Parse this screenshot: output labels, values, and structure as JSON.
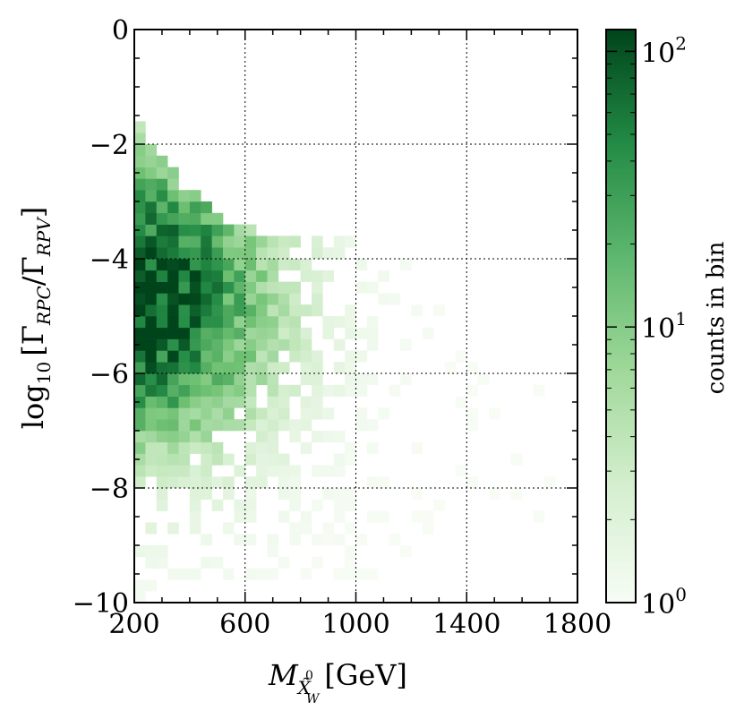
{
  "chart_data": {
    "type": "heatmap",
    "title": "",
    "xlabel": {
      "main": "M",
      "sub": "X̃",
      "sub_sup": "0",
      "sub_sub": "W",
      "unit": "[GeV]"
    },
    "ylabel": {
      "prefix": "log",
      "prefix_sub": "10",
      "open": "[Γ",
      "num_sub": "RPC",
      "slash": "/Γ",
      "den_sub": "RPV",
      "close": "]"
    },
    "xlim": [
      200,
      1800
    ],
    "ylim": [
      -10,
      0
    ],
    "xticks": [
      200,
      600,
      1000,
      1400,
      1800
    ],
    "xtick_labels": [
      "200",
      "600",
      "1000",
      "1400",
      "1800"
    ],
    "yticks": [
      -10,
      -8,
      -6,
      -4,
      -2,
      0
    ],
    "ytick_labels": [
      "−10",
      "−8",
      "−6",
      "−4",
      "−2",
      "0"
    ],
    "grid": true,
    "bin_width_x": 40,
    "bin_width_y": 0.2,
    "colormap": {
      "low": "#f7fcf5",
      "mid": "#74c476",
      "high": "#00441b"
    },
    "colorbar": {
      "label": "counts in bin",
      "scale": "log",
      "range": [
        1,
        120
      ],
      "ticks": [
        {
          "value": 1,
          "base": "10",
          "exp": "0"
        },
        {
          "value": 10,
          "base": "10",
          "exp": "1"
        },
        {
          "value": 100,
          "base": "10",
          "exp": "2"
        }
      ]
    },
    "density_profile": [
      {
        "x": 200,
        "y": [
          -10.0,
          -1.8
        ]
      },
      {
        "x": 320,
        "y": [
          -9.8,
          -2.6
        ]
      },
      {
        "x": 440,
        "y": [
          -9.6,
          -3.2
        ]
      },
      {
        "x": 600,
        "y": [
          -9.8,
          -3.6
        ]
      },
      {
        "x": 800,
        "y": [
          -9.6,
          -3.8
        ]
      },
      {
        "x": 1000,
        "y": [
          -9.6,
          -3.8
        ]
      },
      {
        "x": 1200,
        "y": [
          -9.6,
          -4.2
        ]
      },
      {
        "x": 1400,
        "y": [
          -8.0,
          -6.0
        ]
      },
      {
        "x": 1680,
        "y": [
          -9.0,
          -6.0
        ]
      }
    ],
    "peak_region": {
      "x": [
        200,
        480
      ],
      "y": [
        -6.0,
        -3.6
      ],
      "max_count": 120
    }
  }
}
